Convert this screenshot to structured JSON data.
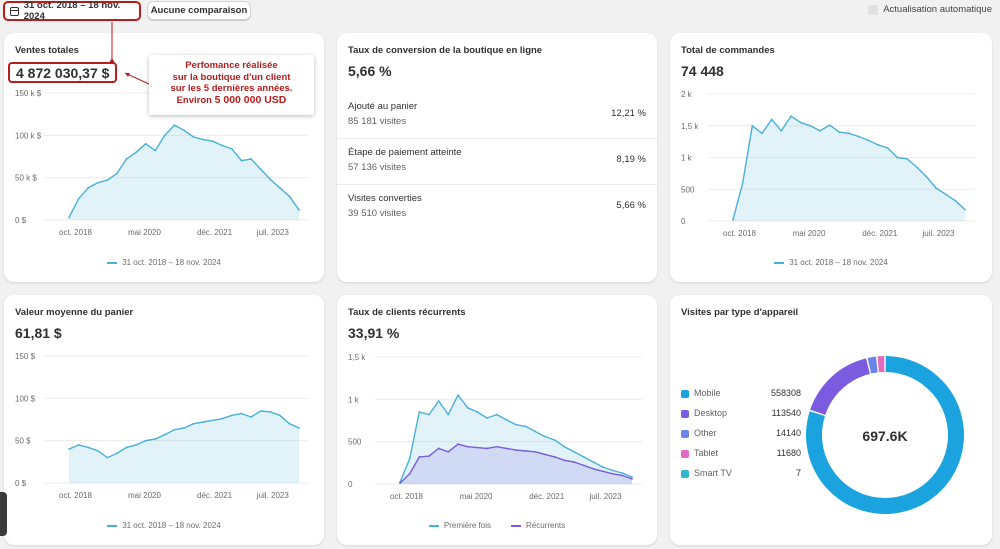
{
  "topbar": {
    "date_range": "31 oct. 2018 – 18 nov. 2024",
    "compare_label": "Aucune comparaison",
    "auto_refresh_label": "Actualisation automatique"
  },
  "annotation": {
    "line1": "Perfomance réalisée",
    "line2": "sur la boutique d'un client",
    "line3": "sur les 5 dernières années.",
    "line4_prefix": "Environ ",
    "line4_highlight": "5 000 000 USD"
  },
  "cards": {
    "total_sales": {
      "title": "Ventes totales",
      "value": "4 872 030,37 $",
      "legend": "31 oct. 2018 – 18 nov. 2024"
    },
    "conversion": {
      "title": "Taux de conversion de la boutique en ligne",
      "value": "5,66 %",
      "rows": [
        {
          "label": "Ajouté au panier",
          "visits": "85 181 visites",
          "pct": "12,21 %"
        },
        {
          "label": "Étape de paiement atteinte",
          "visits": "57 136 visites",
          "pct": "8,19 %"
        },
        {
          "label": "Visites converties",
          "visits": "39 510 visites",
          "pct": "5,66 %"
        }
      ]
    },
    "total_orders": {
      "title": "Total de commandes",
      "value": "74 448",
      "legend": "31 oct. 2018 – 18 nov. 2024"
    },
    "avg_cart": {
      "title": "Valeur moyenne du panier",
      "value": "61,81 $",
      "legend": "31 oct. 2018 – 18 nov. 2024"
    },
    "returning": {
      "title": "Taux de clients récurrents",
      "value": "33,91 %",
      "legend_first": "Première fois",
      "legend_returning": "Récurrents"
    },
    "devices": {
      "title": "Visites par type d'appareil",
      "total": "697.6K",
      "items": [
        {
          "name": "Mobile",
          "value": "558308",
          "color": "#1aa3de"
        },
        {
          "name": "Desktop",
          "value": "113540",
          "color": "#7b5be0"
        },
        {
          "name": "Other",
          "value": "14140",
          "color": "#6b86e6"
        },
        {
          "name": "Tablet",
          "value": "11680",
          "color": "#e06bc1"
        },
        {
          "name": "Smart TV",
          "value": "7",
          "color": "#34b5d1"
        }
      ]
    }
  },
  "chart_data": [
    {
      "id": "total_sales",
      "type": "area",
      "color": "#4bb0d8",
      "x": [
        "2018-10",
        "2019-01",
        "2019-04",
        "2019-07",
        "2019-10",
        "2020-01",
        "2020-04",
        "2020-07",
        "2020-10",
        "2021-01",
        "2021-04",
        "2021-07",
        "2021-10",
        "2022-01",
        "2022-04",
        "2022-07",
        "2022-10",
        "2023-01",
        "2023-04",
        "2023-07",
        "2023-10",
        "2024-01",
        "2024-04",
        "2024-07",
        "2024-11"
      ],
      "values": [
        3000,
        25000,
        38000,
        44000,
        47000,
        55000,
        72000,
        80000,
        90000,
        82000,
        100000,
        112000,
        106000,
        98000,
        95000,
        93000,
        88000,
        84000,
        70000,
        72000,
        60000,
        48000,
        38000,
        28000,
        12000
      ],
      "xticks": [
        "oct. 2018",
        "mai 2020",
        "déc. 2021",
        "juil. 2023"
      ],
      "yticks": [
        "0 $",
        "50 k $",
        "100 k $",
        "150 k $"
      ],
      "ylim": [
        0,
        150000
      ]
    },
    {
      "id": "total_orders",
      "type": "area",
      "color": "#4bb0d8",
      "x": [
        "2018-10",
        "2019-01",
        "2019-04",
        "2019-07",
        "2019-10",
        "2020-01",
        "2020-04",
        "2020-07",
        "2020-10",
        "2021-01",
        "2021-04",
        "2021-07",
        "2021-10",
        "2022-01",
        "2022-04",
        "2022-07",
        "2022-10",
        "2023-01",
        "2023-04",
        "2023-07",
        "2023-10",
        "2024-01",
        "2024-04",
        "2024-07",
        "2024-11"
      ],
      "values": [
        20,
        600,
        1500,
        1380,
        1600,
        1420,
        1650,
        1550,
        1500,
        1420,
        1510,
        1400,
        1380,
        1330,
        1270,
        1200,
        1150,
        1000,
        980,
        850,
        700,
        520,
        420,
        320,
        180
      ],
      "xticks": [
        "oct. 2018",
        "mai 2020",
        "déc. 2021",
        "juil. 2023"
      ],
      "yticks": [
        "0",
        "500",
        "1 k",
        "1,5 k",
        "2 k"
      ],
      "ylim": [
        0,
        2000
      ]
    },
    {
      "id": "avg_cart",
      "type": "area",
      "color": "#4bb0d8",
      "x": [
        "2018-10",
        "2019-01",
        "2019-04",
        "2019-07",
        "2019-10",
        "2020-01",
        "2020-04",
        "2020-07",
        "2020-10",
        "2021-01",
        "2021-04",
        "2021-07",
        "2021-10",
        "2022-01",
        "2022-04",
        "2022-07",
        "2022-10",
        "2023-01",
        "2023-04",
        "2023-07",
        "2023-10",
        "2024-01",
        "2024-04",
        "2024-07",
        "2024-11"
      ],
      "values": [
        40,
        45,
        42,
        38,
        30,
        35,
        42,
        45,
        50,
        52,
        57,
        63,
        65,
        70,
        72,
        74,
        76,
        80,
        82,
        78,
        85,
        84,
        80,
        70,
        65
      ],
      "xticks": [
        "oct. 2018",
        "mai 2020",
        "déc. 2021",
        "juil. 2023"
      ],
      "yticks": [
        "0 $",
        "50 $",
        "100 $",
        "150 $"
      ],
      "ylim": [
        0,
        150
      ]
    },
    {
      "id": "returning",
      "type": "area",
      "x": [
        "2018-10",
        "2019-01",
        "2019-04",
        "2019-07",
        "2019-10",
        "2020-01",
        "2020-04",
        "2020-07",
        "2020-10",
        "2021-01",
        "2021-04",
        "2021-07",
        "2021-10",
        "2022-01",
        "2022-04",
        "2022-07",
        "2022-10",
        "2023-01",
        "2023-04",
        "2023-07",
        "2023-10",
        "2024-01",
        "2024-04",
        "2024-07",
        "2024-11"
      ],
      "series": [
        {
          "name": "Première fois",
          "color": "#4bb0d8",
          "values": [
            20,
            300,
            850,
            820,
            980,
            820,
            1050,
            900,
            850,
            780,
            820,
            760,
            700,
            680,
            620,
            560,
            520,
            440,
            380,
            320,
            260,
            200,
            160,
            130,
            80
          ]
        },
        {
          "name": "Récurrents",
          "color": "#7b5be0",
          "values": [
            10,
            120,
            320,
            330,
            420,
            380,
            470,
            440,
            430,
            420,
            440,
            420,
            400,
            390,
            380,
            350,
            320,
            280,
            260,
            220,
            180,
            150,
            120,
            100,
            60
          ]
        }
      ],
      "xticks": [
        "oct. 2018",
        "mai 2020",
        "déc. 2021",
        "juil. 2023"
      ],
      "yticks": [
        "0",
        "500",
        "1 k",
        "1,5 k"
      ],
      "ylim": [
        0,
        1500
      ]
    },
    {
      "id": "devices",
      "type": "pie",
      "categories": [
        "Mobile",
        "Desktop",
        "Other",
        "Tablet",
        "Smart TV"
      ],
      "values": [
        558308,
        113540,
        14140,
        11680,
        7
      ]
    }
  ]
}
